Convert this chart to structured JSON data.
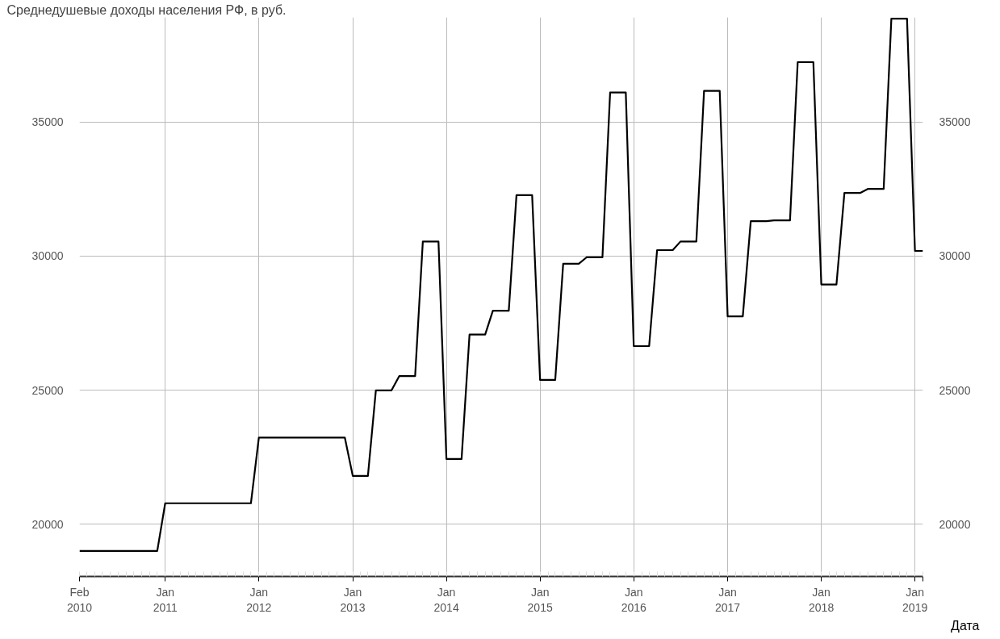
{
  "chart_data": {
    "type": "line",
    "title": "Среднедушевые доходы населения РФ, в руб.",
    "xlabel": "Дата",
    "x": [
      "2010-02",
      "2010-03",
      "2010-04",
      "2010-05",
      "2010-06",
      "2010-07",
      "2010-08",
      "2010-09",
      "2010-10",
      "2010-11",
      "2010-12",
      "2011-01",
      "2011-02",
      "2011-03",
      "2011-04",
      "2011-05",
      "2011-06",
      "2011-07",
      "2011-08",
      "2011-09",
      "2011-10",
      "2011-11",
      "2011-12",
      "2012-01",
      "2012-02",
      "2012-03",
      "2012-04",
      "2012-05",
      "2012-06",
      "2012-07",
      "2012-08",
      "2012-09",
      "2012-10",
      "2012-11",
      "2012-12",
      "2013-01",
      "2013-02",
      "2013-03",
      "2013-04",
      "2013-05",
      "2013-06",
      "2013-07",
      "2013-08",
      "2013-09",
      "2013-10",
      "2013-11",
      "2013-12",
      "2014-01",
      "2014-02",
      "2014-03",
      "2014-04",
      "2014-05",
      "2014-06",
      "2014-07",
      "2014-08",
      "2014-09",
      "2014-10",
      "2014-11",
      "2014-12",
      "2015-01",
      "2015-02",
      "2015-03",
      "2015-04",
      "2015-05",
      "2015-06",
      "2015-07",
      "2015-08",
      "2015-09",
      "2015-10",
      "2015-11",
      "2015-12",
      "2016-01",
      "2016-02",
      "2016-03",
      "2016-04",
      "2016-05",
      "2016-06",
      "2016-07",
      "2016-08",
      "2016-09",
      "2016-10",
      "2016-11",
      "2016-12",
      "2017-01",
      "2017-02",
      "2017-03",
      "2017-04",
      "2017-05",
      "2017-06",
      "2017-07",
      "2017-08",
      "2017-09",
      "2017-10",
      "2017-11",
      "2017-12",
      "2018-01",
      "2018-02",
      "2018-03",
      "2018-04",
      "2018-05",
      "2018-06",
      "2018-07",
      "2018-08",
      "2018-09",
      "2018-10",
      "2018-11",
      "2018-12",
      "2019-01",
      "2019-02"
    ],
    "series": [
      {
        "color": "#000000",
        "values": [
          19000,
          19000,
          19000,
          19000,
          19000,
          19000,
          19000,
          19000,
          19000,
          19000,
          19000,
          20780,
          20780,
          20780,
          20780,
          20780,
          20780,
          20780,
          20780,
          20780,
          20780,
          20780,
          20780,
          23230,
          23230,
          23230,
          23230,
          23230,
          23230,
          23230,
          23230,
          23230,
          23230,
          23230,
          23230,
          21800,
          21800,
          21800,
          24990,
          24990,
          24990,
          25520,
          25520,
          25520,
          30540,
          30540,
          30540,
          22430,
          22430,
          22430,
          27070,
          27070,
          27070,
          27960,
          27960,
          27960,
          32270,
          32270,
          32270,
          25380,
          25380,
          25380,
          29710,
          29710,
          29710,
          29950,
          29950,
          29950,
          36100,
          36100,
          36100,
          26640,
          26640,
          26640,
          30220,
          30220,
          30220,
          30540,
          30540,
          30540,
          36160,
          36160,
          36160,
          27750,
          27750,
          27750,
          31300,
          31300,
          31300,
          31330,
          31330,
          31330,
          37230,
          37230,
          37230,
          28940,
          28940,
          28940,
          32350,
          32350,
          32350,
          32500,
          32500,
          32500,
          38850,
          38850,
          38850,
          30190,
          30190
        ]
      }
    ],
    "xlim": [
      "2010-02",
      "2019-02"
    ],
    "xticks": [
      {
        "value": "2010-02",
        "label": "Feb\n2010"
      },
      {
        "value": "2011-01",
        "label": "Jan\n2011"
      },
      {
        "value": "2012-01",
        "label": "Jan\n2012"
      },
      {
        "value": "2013-01",
        "label": "Jan\n2013"
      },
      {
        "value": "2014-01",
        "label": "Jan\n2014"
      },
      {
        "value": "2015-01",
        "label": "Jan\n2015"
      },
      {
        "value": "2016-01",
        "label": "Jan\n2016"
      },
      {
        "value": "2017-01",
        "label": "Jan\n2017"
      },
      {
        "value": "2018-01",
        "label": "Jan\n2018"
      },
      {
        "value": "2019-01",
        "label": "Jan\n2019"
      },
      {
        "value": "2019-02",
        "label": null
      }
    ],
    "ylim": [
      18050,
      38900
    ],
    "yticks": [
      20000,
      25000,
      30000,
      35000
    ],
    "y2lim": [
      18050,
      38900
    ],
    "y2ticks": [
      20000,
      25000,
      30000,
      35000
    ],
    "grid": true,
    "line_style": "solid",
    "marker": "none"
  }
}
